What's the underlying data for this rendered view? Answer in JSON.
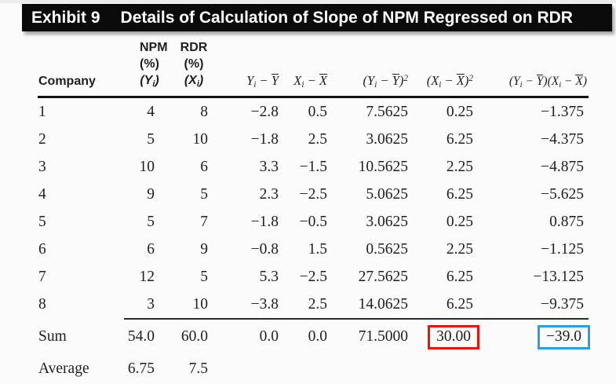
{
  "title": {
    "label": "Exhibit 9",
    "text": "Details of Calculation of Slope of NPM Regressed on RDR"
  },
  "table": {
    "headers": {
      "company": "Company",
      "npm_lines": [
        "NPM",
        "(%)",
        "(Y_i)"
      ],
      "rdr_lines": [
        "RDR",
        "(%)",
        "(X_i)"
      ],
      "math": [
        "Y_i − !Y",
        "X_i − !X",
        "(Y_i − !Y)^2",
        "(X_i − !X)^2",
        "(Y_i − !Y)(X_i − !X)"
      ]
    },
    "rows": [
      {
        "company": "1",
        "npm": "4",
        "rdr": "8",
        "ydev": "−2.8",
        "xdev": "0.5",
        "ydev2": "7.5625",
        "xdev2": "0.25",
        "cross": "−1.375"
      },
      {
        "company": "2",
        "npm": "5",
        "rdr": "10",
        "ydev": "−1.8",
        "xdev": "2.5",
        "ydev2": "3.0625",
        "xdev2": "6.25",
        "cross": "−4.375"
      },
      {
        "company": "3",
        "npm": "10",
        "rdr": "6",
        "ydev": "3.3",
        "xdev": "−1.5",
        "ydev2": "10.5625",
        "xdev2": "2.25",
        "cross": "−4.875"
      },
      {
        "company": "4",
        "npm": "9",
        "rdr": "5",
        "ydev": "2.3",
        "xdev": "−2.5",
        "ydev2": "5.0625",
        "xdev2": "6.25",
        "cross": "−5.625"
      },
      {
        "company": "5",
        "npm": "5",
        "rdr": "7",
        "ydev": "−1.8",
        "xdev": "−0.5",
        "ydev2": "3.0625",
        "xdev2": "0.25",
        "cross": "0.875"
      },
      {
        "company": "6",
        "npm": "6",
        "rdr": "9",
        "ydev": "−0.8",
        "xdev": "1.5",
        "ydev2": "0.5625",
        "xdev2": "2.25",
        "cross": "−1.125"
      },
      {
        "company": "7",
        "npm": "12",
        "rdr": "5",
        "ydev": "5.3",
        "xdev": "−2.5",
        "ydev2": "27.5625",
        "xdev2": "6.25",
        "cross": "−13.125"
      },
      {
        "company": "8",
        "npm": "3",
        "rdr": "10",
        "ydev": "−3.8",
        "xdev": "2.5",
        "ydev2": "14.0625",
        "xdev2": "6.25",
        "cross": "−9.375"
      }
    ],
    "sum": {
      "label": "Sum",
      "npm": "54.0",
      "rdr": "60.0",
      "ydev": "0.0",
      "xdev": "0.0",
      "ydev2": "71.5000",
      "xdev2": "30.00",
      "cross": "−39.0"
    },
    "average": {
      "label": "Average",
      "npm": "6.75",
      "rdr": "7.5"
    }
  },
  "highlights": {
    "red_box_color": "#e81309",
    "blue_box_color": "#2a9fe5"
  }
}
